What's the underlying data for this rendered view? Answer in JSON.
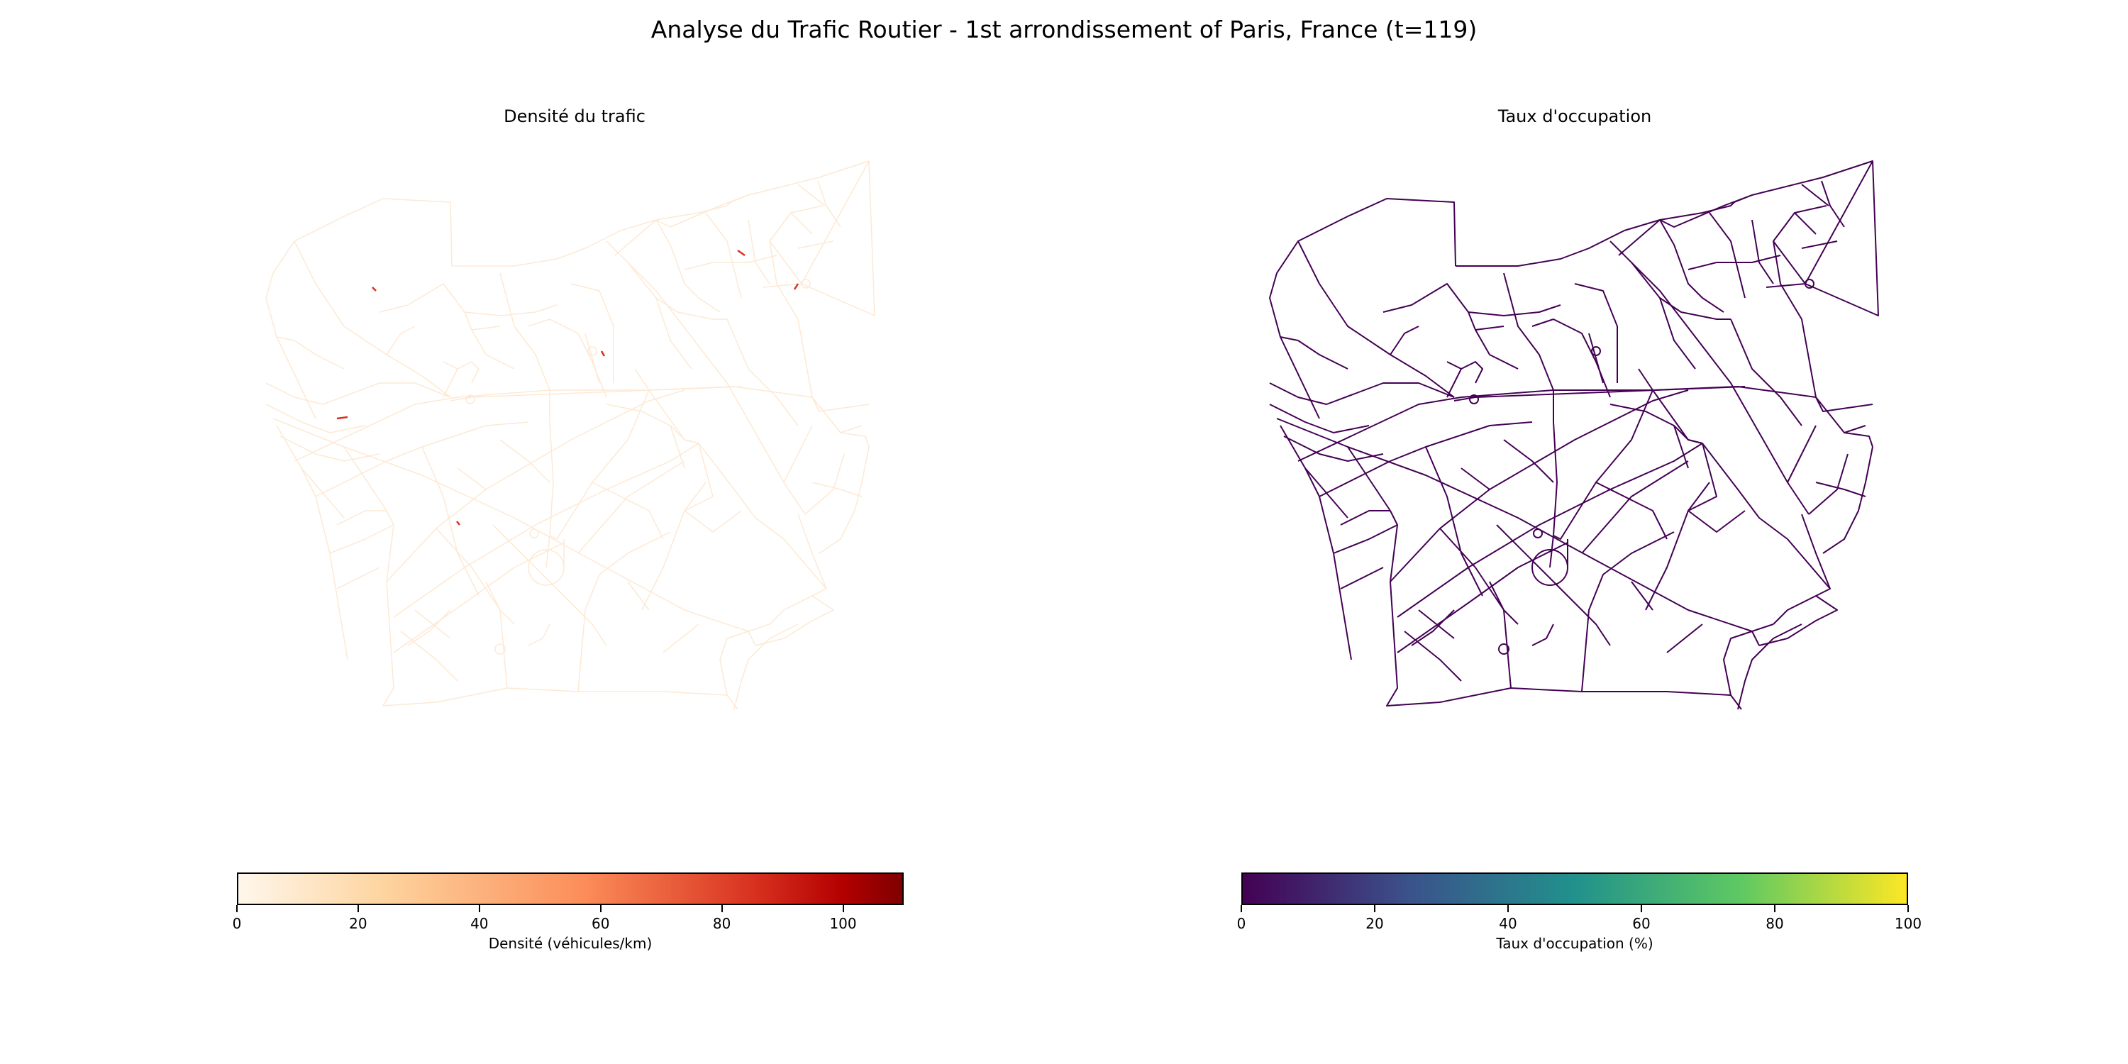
{
  "figure": {
    "title": "Analyse du Trafic Routier - 1st arrondissement of Paris, France (t=119)"
  },
  "panels": [
    {
      "title": "Densité du trafic",
      "colormap": "OrRd",
      "edge_color": "#fde9d4",
      "hotspot_color": "#d7301f",
      "colorbar": {
        "label": "Densité (véhicules/km)",
        "ticks": [
          "0",
          "20",
          "40",
          "60",
          "80",
          "100"
        ],
        "range": [
          0,
          110
        ]
      }
    },
    {
      "title": "Taux d'occupation",
      "colormap": "viridis",
      "edge_color": "#440154",
      "colorbar": {
        "label": "Taux d'occupation (%)",
        "ticks": [
          "0",
          "20",
          "40",
          "60",
          "80",
          "100"
        ],
        "range": [
          0,
          100
        ]
      }
    }
  ]
}
